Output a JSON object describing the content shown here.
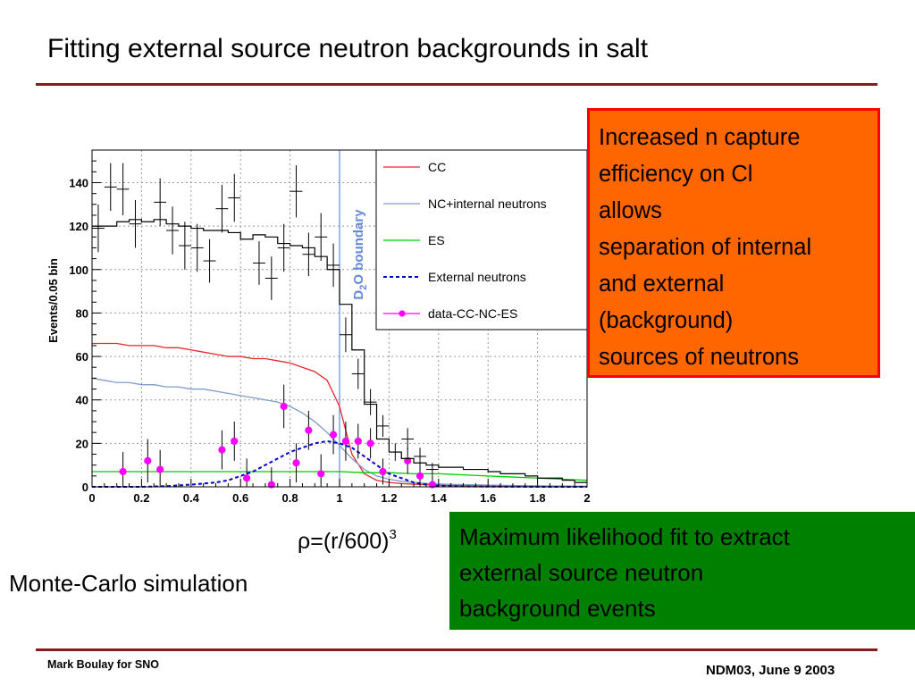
{
  "slide": {
    "title": "Fitting external source neutron backgrounds in salt",
    "orange_box_lines": [
      "Increased n capture",
      "efficiency on Cl",
      "allows",
      "separation of internal",
      "and external",
      "(background)",
      "sources of neutrons"
    ],
    "green_box_lines": [
      "Maximum likelihood fit to extract",
      "external source neutron",
      "background events"
    ],
    "rho_base": "ρ=(r/600)",
    "rho_exp": "3",
    "mc_label": "Monte-Carlo simulation",
    "footer_left": "Mark Boulay for SNO",
    "footer_right": "NDM03, June 9 2003"
  },
  "colors": {
    "rule": "#8b1a1a",
    "orange_fill": "#ff6600",
    "orange_border": "#ff0000",
    "green_fill": "#008000",
    "cc": "#e8282d",
    "nc": "#7f9cc8",
    "es": "#00cc00",
    "ext": "#0000cc",
    "data": "#ff00ff",
    "boundary": "#6688dd"
  },
  "chart_data": {
    "type": "line",
    "ylabel": "Events/0.05 bin",
    "xlim": [
      0,
      2
    ],
    "ylim": [
      0,
      155
    ],
    "x_ticks": [
      0,
      0.2,
      0.4,
      0.6,
      0.8,
      1,
      1.2,
      1.4,
      1.6,
      1.8,
      2
    ],
    "x_tick_labels": [
      "0",
      "0.2",
      "0.4",
      "0.6",
      "0.8",
      "1",
      "1.2",
      "1.4",
      "1.6",
      "1.8",
      "2"
    ],
    "y_ticks": [
      0,
      20,
      40,
      60,
      80,
      100,
      120,
      140
    ],
    "y_tick_labels": [
      "0",
      "20",
      "40",
      "60",
      "80",
      "100",
      "120",
      "140"
    ],
    "grid": true,
    "legend_position": "top-right",
    "annotation": {
      "text_main": "D",
      "text_sub": "2",
      "text_rest": "O boundary",
      "x": 1.0
    },
    "series": [
      {
        "name": "CC",
        "style": "solid",
        "color": "#e8282d",
        "x": [
          0,
          0.05,
          0.1,
          0.15,
          0.2,
          0.25,
          0.3,
          0.35,
          0.4,
          0.45,
          0.5,
          0.55,
          0.6,
          0.65,
          0.7,
          0.75,
          0.8,
          0.85,
          0.9,
          0.95,
          1.0,
          1.05,
          1.1,
          1.15,
          1.2,
          1.25,
          1.3,
          1.35,
          1.4,
          1.45,
          1.5,
          1.55,
          1.6,
          1.65,
          1.7,
          1.75,
          1.8,
          1.85,
          1.9,
          1.95,
          2.0
        ],
        "y": [
          66,
          66,
          66,
          65,
          65,
          65,
          64,
          64,
          63,
          62,
          61,
          60,
          60,
          59,
          59,
          58,
          57,
          55,
          53,
          49,
          37,
          15,
          6,
          3,
          2,
          1.5,
          1.2,
          1,
          0.8,
          0.6,
          0.5,
          0.5,
          0.4,
          0.4,
          0.3,
          0.3,
          0.3,
          0.2,
          0.2,
          0.2,
          0.2
        ]
      },
      {
        "name": "NC+internal neutrons",
        "style": "solid",
        "color": "#7f9cc8",
        "x": [
          0,
          0.05,
          0.1,
          0.15,
          0.2,
          0.25,
          0.3,
          0.35,
          0.4,
          0.45,
          0.5,
          0.55,
          0.6,
          0.65,
          0.7,
          0.75,
          0.8,
          0.85,
          0.9,
          0.95,
          1.0,
          1.05,
          1.1,
          1.15,
          1.2,
          1.25,
          1.3,
          1.35,
          1.4,
          1.45,
          1.5,
          1.55,
          1.6,
          1.65,
          1.7,
          1.75,
          1.8,
          1.85,
          1.9,
          1.95,
          2.0
        ],
        "y": [
          50,
          49,
          48,
          48,
          47,
          47,
          46,
          46,
          45,
          45,
          44,
          43,
          42,
          41,
          40,
          39,
          37,
          34,
          30,
          25,
          19,
          13,
          8,
          5,
          3.5,
          2.5,
          2,
          1.6,
          1.3,
          1.1,
          1,
          0.9,
          0.8,
          0.7,
          0.6,
          0.5,
          0.5,
          0.4,
          0.4,
          0.3,
          0.3
        ]
      },
      {
        "name": "ES",
        "style": "solid",
        "color": "#00cc00",
        "x": [
          0,
          0.2,
          0.4,
          0.6,
          0.8,
          1.0,
          1.1,
          1.2,
          1.3,
          1.4,
          1.5,
          1.6,
          1.7,
          1.8,
          1.9,
          2.0
        ],
        "y": [
          7,
          7,
          7,
          7,
          7,
          7,
          6.5,
          6.5,
          6,
          6,
          5.5,
          5,
          4.5,
          4,
          3.5,
          3
        ]
      },
      {
        "name": "External neutrons",
        "style": "dashed",
        "color": "#0000cc",
        "x": [
          0,
          0.2,
          0.3,
          0.4,
          0.5,
          0.55,
          0.6,
          0.65,
          0.7,
          0.75,
          0.8,
          0.85,
          0.9,
          0.95,
          1.0,
          1.05,
          1.1,
          1.15,
          1.2,
          1.25,
          1.3,
          1.35,
          1.4,
          1.5,
          1.6,
          1.8,
          2.0
        ],
        "y": [
          0,
          0,
          0.3,
          1,
          2,
          3,
          5,
          7,
          10,
          13,
          16,
          18,
          20,
          21,
          20,
          18,
          14,
          10,
          6,
          4,
          2,
          1,
          0.5,
          0.2,
          0.1,
          0,
          0
        ]
      },
      {
        "name": "data-CC-NC-ES",
        "style": "points",
        "color": "#ff00ff",
        "x": [
          0.125,
          0.225,
          0.275,
          0.525,
          0.575,
          0.625,
          0.725,
          0.775,
          0.825,
          0.875,
          0.925,
          0.975,
          1.025,
          1.075,
          1.125,
          1.175,
          1.275,
          1.325,
          1.375
        ],
        "y": [
          7,
          12,
          8,
          17,
          21,
          4,
          1,
          37,
          11,
          26,
          6,
          24,
          21,
          21,
          20,
          7,
          12,
          5,
          1
        ],
        "err": [
          9,
          10,
          9,
          9,
          9,
          9,
          8,
          10,
          9,
          9,
          9,
          9,
          9,
          8,
          7,
          6,
          6,
          5,
          4
        ]
      },
      {
        "name": "",
        "style": "histogram",
        "color": "#000000",
        "x": [
          0,
          0.05,
          0.1,
          0.15,
          0.2,
          0.25,
          0.3,
          0.35,
          0.4,
          0.45,
          0.5,
          0.55,
          0.6,
          0.65,
          0.7,
          0.75,
          0.8,
          0.85,
          0.9,
          0.95,
          1.0,
          1.05,
          1.1,
          1.15,
          1.2,
          1.25,
          1.3,
          1.35,
          1.4,
          1.45,
          1.5,
          1.55,
          1.6,
          1.65,
          1.7,
          1.75,
          1.8,
          1.85,
          1.9,
          1.95
        ],
        "y": [
          120,
          120,
          122,
          123,
          122,
          123,
          121,
          120,
          119,
          118,
          118,
          117,
          114,
          116,
          115,
          112,
          111,
          110,
          106,
          100,
          84,
          63,
          38,
          22,
          16,
          13,
          11,
          10,
          9,
          9,
          8,
          8,
          7,
          6,
          6,
          5,
          4,
          4,
          3,
          2
        ]
      },
      {
        "name": "",
        "style": "errorbars",
        "color": "#000000",
        "x": [
          0.025,
          0.075,
          0.125,
          0.175,
          0.275,
          0.325,
          0.375,
          0.425,
          0.475,
          0.525,
          0.575,
          0.675,
          0.725,
          0.775,
          0.825,
          0.875,
          0.925,
          0.975,
          1.025,
          1.075,
          1.125,
          1.175,
          1.225,
          1.275,
          1.325,
          1.375
        ],
        "y": [
          119,
          138,
          137,
          121,
          131,
          118,
          111,
          110,
          104,
          128,
          133,
          103,
          96,
          110,
          136,
          107,
          115,
          102,
          70,
          52,
          39,
          28,
          16,
          22,
          14,
          8
        ],
        "err": [
          11,
          11,
          12,
          11,
          11,
          11,
          11,
          11,
          10,
          11,
          11,
          10,
          10,
          11,
          12,
          10,
          11,
          10,
          8,
          7,
          6,
          5,
          4,
          5,
          4,
          3
        ]
      }
    ]
  }
}
